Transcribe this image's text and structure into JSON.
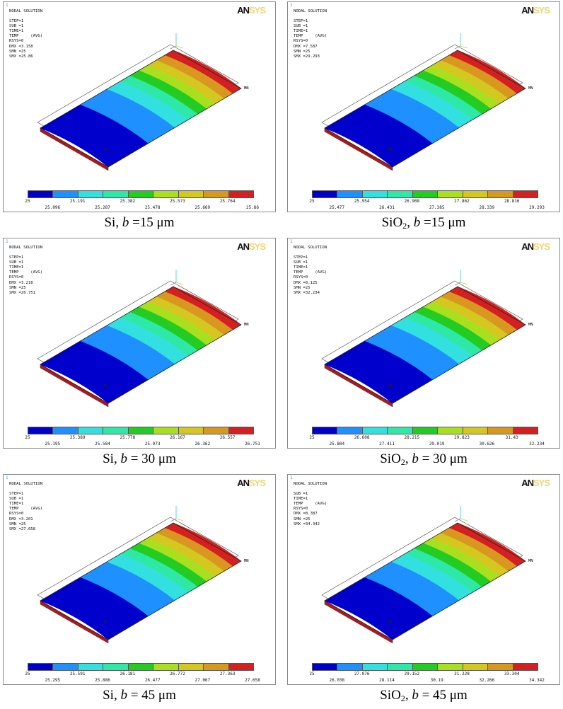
{
  "palette": [
    "#0000cc",
    "#1e90ff",
    "#33e0e0",
    "#2ee8a8",
    "#22cc22",
    "#a8e020",
    "#d4c820",
    "#d89820",
    "#d42020"
  ],
  "panels": [
    {
      "number": "1",
      "title": "NODAL SOLUTION",
      "params": [
        "STEP=1",
        "SUB =1",
        "TIME=1",
        "TEMP     (AVG)",
        "RSYS=0",
        "DMX =3.158",
        "SMN =25",
        "SMX =25.86"
      ],
      "logo_dark": "AN",
      "logo_light": "SYS",
      "mn_label": "MN",
      "mx_label": "MX",
      "ticks_top": [
        "25",
        "25.191",
        "25.382",
        "25.573",
        "25.764"
      ],
      "ticks_bottom": [
        "25.096",
        "25.287",
        "25.478",
        "25.669",
        "25.86"
      ],
      "caption": {
        "material": "Si",
        "var": "b",
        "eq": " =",
        "value": "15",
        "unit": " μm"
      }
    },
    {
      "number": "1",
      "title": "NODAL SOLUTION",
      "params": [
        "STEP=1",
        "SUB =1",
        "TIME=1",
        "TEMP     (AVG)",
        "RSYS=0",
        "DMX =7.587",
        "SMN =25",
        "SMX =29.293"
      ],
      "logo_dark": "AN",
      "logo_light": "SYS",
      "mn_label": "MN",
      "mx_label": "MX",
      "ticks_top": [
        "25",
        "25.954",
        "26.908",
        "27.862",
        "28.816"
      ],
      "ticks_bottom": [
        "25.477",
        "26.431",
        "27.385",
        "28.339",
        "29.293"
      ],
      "caption": {
        "material": "SiO",
        "sub": "2",
        "var": "b",
        "eq": " =",
        "value": "15",
        "unit": " μm"
      }
    },
    {
      "number": "1",
      "title": "NODAL SOLUTION",
      "params": [
        "STEP=1",
        "SUB =1",
        "TIME=1",
        "TEMP     (AVG)",
        "RSYS=0",
        "DMX =3.218",
        "SMN =25",
        "SMX =26.751"
      ],
      "logo_dark": "AN",
      "logo_light": "SYS",
      "mn_label": "MN",
      "mx_label": "MX",
      "ticks_top": [
        "25",
        "25.389",
        "25.778",
        "26.167",
        "26.557"
      ],
      "ticks_bottom": [
        "25.195",
        "25.584",
        "25.973",
        "26.362",
        "26.751"
      ],
      "caption": {
        "material": "Si",
        "var": "b",
        "eq": " = ",
        "value": "30",
        "unit": " μm"
      }
    },
    {
      "number": "1",
      "title": "NODAL SOLUTION",
      "params": [
        "STEP=1",
        "SUB =1",
        "TIME=1",
        "TEMP     (AVG)",
        "RSYS=0",
        "DMX =8.125",
        "SMN =25",
        "SMX =32.234"
      ],
      "logo_dark": "AN",
      "logo_light": "SYS",
      "mn_label": "MN",
      "mx_label": "MX",
      "ticks_top": [
        "25",
        "26.608",
        "28.215",
        "29.823",
        "31.43"
      ],
      "ticks_bottom": [
        "25.804",
        "27.411",
        "29.019",
        "30.626",
        "32.234"
      ],
      "caption": {
        "material": "SiO",
        "sub": "2",
        "var": "b",
        "eq": " = ",
        "value": "30",
        "unit": " μm"
      }
    },
    {
      "number": "1",
      "title": "NODAL SOLUTION",
      "params": [
        "STEP=1",
        "SUB =1",
        "TIME=1",
        "TEMP     (AVG)",
        "RSYS=0",
        "DMX =3.201",
        "SMN =25",
        "SMX =27.658"
      ],
      "logo_dark": "AN",
      "logo_light": "SYS",
      "mn_label": "MN",
      "mx_label": "MX",
      "ticks_top": [
        "25",
        "25.591",
        "26.181",
        "26.772",
        "27.363"
      ],
      "ticks_bottom": [
        "25.295",
        "25.886",
        "26.477",
        "27.067",
        "27.658"
      ],
      "caption": {
        "material": "Si",
        "var": "b",
        "eq": " = ",
        "value": "45",
        "unit": " μm"
      }
    },
    {
      "number": "1",
      "title": "NODAL SOLUTION",
      "params": [
        "SUB =1",
        "TIME=1",
        "TEMP     (AVG)",
        "RSYS=0",
        "DMX =8.387",
        "SMN =25",
        "SMX =34.342"
      ],
      "logo_dark": "AN",
      "logo_light": "SYS",
      "mn_label": "MN",
      "mx_label": "MX",
      "ticks_top": [
        "25",
        "27.076",
        "29.152",
        "31.228",
        "33.304"
      ],
      "ticks_bottom": [
        "26.038",
        "28.114",
        "30.19",
        "32.266",
        "34.342"
      ],
      "caption": {
        "material": "SiO",
        "sub": "2",
        "var": "b",
        "eq": " = ",
        "value": "45",
        "unit": " μm"
      }
    }
  ]
}
